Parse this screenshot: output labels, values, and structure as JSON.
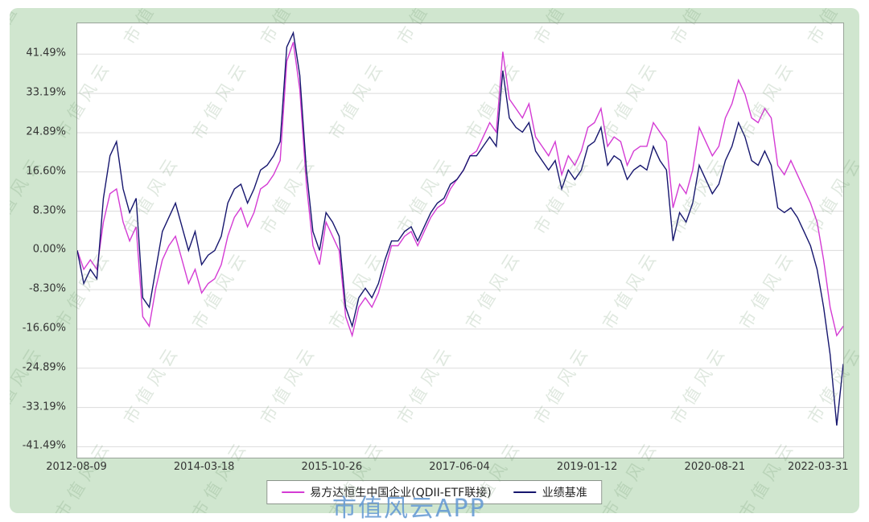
{
  "watermarks": {
    "diagonal": "市值风云",
    "app": "市值风云APP"
  },
  "chart_data": {
    "type": "line",
    "title": "",
    "xlabel": "",
    "ylabel": "",
    "grid": "horizontal",
    "legend_position": "bottom-center",
    "ylim": [
      -43.8,
      48
    ],
    "y_ticks": {
      "labels": [
        "41.49%",
        "33.19%",
        "24.89%",
        "16.60%",
        "8.30%",
        "0.00%",
        "-8.30%",
        "-16.60%",
        "-24.89%",
        "-33.19%",
        "-41.49%"
      ],
      "values": [
        41.49,
        33.19,
        24.89,
        16.6,
        8.3,
        0,
        -8.3,
        -16.6,
        -24.89,
        -33.19,
        -41.49
      ]
    },
    "x_ticks": [
      "2012-08-09",
      "2014-03-18",
      "2015-10-26",
      "2017-06-04",
      "2019-01-12",
      "2020-08-21",
      "2022-03-31"
    ],
    "x": [
      "2012-08",
      "2012-09",
      "2012-10",
      "2012-11",
      "2012-12",
      "2013-01",
      "2013-02",
      "2013-03",
      "2013-04",
      "2013-05",
      "2013-06",
      "2013-07",
      "2013-08",
      "2013-09",
      "2013-10",
      "2013-11",
      "2013-12",
      "2014-01",
      "2014-02",
      "2014-03",
      "2014-04",
      "2014-05",
      "2014-06",
      "2014-07",
      "2014-08",
      "2014-09",
      "2014-10",
      "2014-11",
      "2014-12",
      "2015-01",
      "2015-02",
      "2015-03",
      "2015-04",
      "2015-05",
      "2015-06",
      "2015-07",
      "2015-08",
      "2015-09",
      "2015-10",
      "2015-11",
      "2015-12",
      "2016-01",
      "2016-02",
      "2016-03",
      "2016-04",
      "2016-05",
      "2016-06",
      "2016-07",
      "2016-08",
      "2016-09",
      "2016-10",
      "2016-11",
      "2016-12",
      "2017-01",
      "2017-02",
      "2017-03",
      "2017-04",
      "2017-05",
      "2017-06",
      "2017-07",
      "2017-08",
      "2017-09",
      "2017-10",
      "2017-11",
      "2017-12",
      "2018-01",
      "2018-02",
      "2018-03",
      "2018-04",
      "2018-05",
      "2018-06",
      "2018-07",
      "2018-08",
      "2018-09",
      "2018-10",
      "2018-11",
      "2018-12",
      "2019-01",
      "2019-02",
      "2019-03",
      "2019-04",
      "2019-05",
      "2019-06",
      "2019-07",
      "2019-08",
      "2019-09",
      "2019-10",
      "2019-11",
      "2019-12",
      "2020-01",
      "2020-02",
      "2020-03",
      "2020-04",
      "2020-05",
      "2020-06",
      "2020-07",
      "2020-08",
      "2020-09",
      "2020-10",
      "2020-11",
      "2020-12",
      "2021-01",
      "2021-02",
      "2021-03",
      "2021-04",
      "2021-05",
      "2021-06",
      "2021-07",
      "2021-08",
      "2021-09",
      "2021-10",
      "2021-11",
      "2021-12",
      "2022-01",
      "2022-02",
      "2022-03-01",
      "2022-03-15",
      "2022-03-31"
    ],
    "series": [
      {
        "name": "易方达恒生中国企业(QDII-ETF联接)",
        "color": "#d43bd4",
        "values": [
          0,
          -4,
          -2,
          -4,
          6,
          12,
          13,
          6,
          2,
          5,
          -14,
          -16,
          -8,
          -2,
          1,
          3,
          -2,
          -7,
          -4,
          -9,
          -7,
          -6,
          -3,
          3,
          7,
          9,
          5,
          8,
          13,
          14,
          16,
          19,
          40,
          44,
          34,
          14,
          1,
          -3,
          6,
          3,
          0,
          -14,
          -18,
          -12,
          -10,
          -12,
          -9,
          -4,
          1,
          1,
          3,
          4,
          1,
          4,
          7,
          9,
          10,
          13,
          15,
          17,
          20,
          21,
          24,
          27,
          25,
          42,
          32,
          30,
          28,
          31,
          24,
          22,
          20,
          23,
          16,
          20,
          18,
          21,
          26,
          27,
          30,
          22,
          24,
          23,
          18,
          21,
          22,
          22,
          27,
          25,
          23,
          9,
          14,
          12,
          17,
          26,
          23,
          20,
          22,
          28,
          31,
          36,
          33,
          28,
          27,
          30,
          28,
          18,
          16,
          19,
          16,
          13,
          10,
          6,
          -2,
          -12,
          -18,
          -16
        ]
      },
      {
        "name": "业绩基准",
        "color": "#16166e",
        "values": [
          0,
          -7,
          -4,
          -6,
          11,
          20,
          23,
          13,
          8,
          11,
          -10,
          -12,
          -4,
          4,
          7,
          10,
          5,
          0,
          4,
          -3,
          -1,
          0,
          3,
          10,
          13,
          14,
          10,
          13,
          17,
          18,
          20,
          23,
          43,
          46,
          37,
          17,
          4,
          0,
          8,
          6,
          3,
          -12,
          -16,
          -10,
          -8,
          -10,
          -7,
          -2,
          2,
          2,
          4,
          5,
          2,
          5,
          8,
          10,
          11,
          14,
          15,
          17,
          20,
          20,
          22,
          24,
          22,
          38,
          28,
          26,
          25,
          27,
          21,
          19,
          17,
          19,
          13,
          17,
          15,
          17,
          22,
          23,
          26,
          18,
          20,
          19,
          15,
          17,
          18,
          17,
          22,
          19,
          17,
          2,
          8,
          6,
          10,
          18,
          15,
          12,
          14,
          19,
          22,
          27,
          24,
          19,
          18,
          21,
          18,
          9,
          8,
          9,
          7,
          4,
          1,
          -4,
          -12,
          -22,
          -37,
          -24
        ]
      }
    ]
  }
}
